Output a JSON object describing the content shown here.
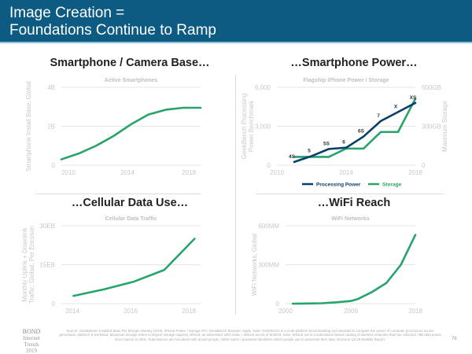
{
  "header": {
    "line1": "Image Creation =",
    "line2": "Foundations Continue to Ramp"
  },
  "colors": {
    "header": "#0d5a82",
    "green": "#26a469",
    "navy": "#0b3f6b"
  },
  "panels": {
    "p1": {
      "title": "Smartphone / Camera Base…"
    },
    "p2": {
      "title": "…Smartphone Power…"
    },
    "p3": {
      "title": "…Cellular Data Use…"
    },
    "p4": {
      "title": "…WiFi Reach"
    }
  },
  "chart_data": [
    {
      "type": "line",
      "title": "Active Smartphones",
      "ylabel": "Smartphone Install Base, Global",
      "xlim": [
        2010,
        2018
      ],
      "ylim": [
        0,
        4
      ],
      "yticks": [
        "0",
        "2B",
        "4B"
      ],
      "xticks": [
        "2010",
        "2014",
        "2018"
      ],
      "grid": true,
      "x": [
        2010,
        2011,
        2012,
        2013,
        2014,
        2015,
        2016,
        2017,
        2018
      ],
      "series": [
        {
          "values": [
            0.3,
            0.6,
            1.0,
            1.5,
            2.1,
            2.6,
            2.85,
            2.95,
            2.95
          ]
        }
      ]
    },
    {
      "type": "line",
      "title": "Flagship iPhone Power / Storage",
      "ylabel": "GeekBench Processing Power Benchmark",
      "y2label": "Maximum Storage",
      "xlim": [
        2010,
        2018
      ],
      "ylim": [
        0,
        6000
      ],
      "y2lim": [
        0,
        600
      ],
      "yticks": [
        "0",
        "3,000",
        "6,000"
      ],
      "y2ticks": [
        "0",
        "300GB",
        "600GB"
      ],
      "xticks": [
        "2010",
        "2014",
        "2018"
      ],
      "grid": true,
      "legend": "bottom",
      "x": [
        2011,
        2012,
        2013,
        2014,
        2015,
        2016,
        2017,
        2018
      ],
      "point_labels": [
        "4S",
        "5",
        "5S",
        "6",
        "6S",
        "7",
        "X",
        "XS"
      ],
      "series": [
        {
          "name": "Processing Power",
          "axis": "left",
          "values": [
            250,
            700,
            1250,
            1350,
            2200,
            3400,
            4100,
            4800
          ]
        },
        {
          "name": "Storage",
          "axis": "right",
          "values": [
            64,
            64,
            64,
            128,
            128,
            256,
            256,
            512
          ]
        }
      ]
    },
    {
      "type": "line",
      "title": "Cellular Data Traffic",
      "ylabel": "Monthly Uplink + Downlink Traffic, Global, Per Ericsson",
      "xlim": [
        2013.6,
        2018.2
      ],
      "ylim": [
        0,
        30
      ],
      "yticks": [
        "0",
        "15EB",
        "30EB"
      ],
      "xticks": [
        "2014",
        "2016",
        "2018"
      ],
      "grid": true,
      "x": [
        2014,
        2015,
        2016,
        2017,
        2018
      ],
      "series": [
        {
          "values": [
            3,
            5.5,
            8.5,
            13,
            25
          ]
        }
      ]
    },
    {
      "type": "line",
      "title": "WiFi Networks",
      "ylabel": "WiFi Networks, Global",
      "xlim": [
        2000,
        2018
      ],
      "ylim": [
        0,
        600
      ],
      "yticks": [
        "0",
        "300MM",
        "600MM"
      ],
      "xticks": [
        "2000",
        "2009",
        "2018"
      ],
      "grid": true,
      "x": [
        2001,
        2003,
        2005,
        2007,
        2009,
        2010,
        2012,
        2014,
        2016,
        2018
      ],
      "series": [
        {
          "values": [
            0,
            1,
            3,
            10,
            20,
            35,
            90,
            160,
            300,
            530
          ]
        }
      ]
    }
  ],
  "footer": {
    "logo1": "BOND",
    "logo2": "Internet Trends",
    "logo3": "2019",
    "page": "76",
    "source": "Source: Smartphone Installed Base Per Morgan Stanley (3/19). iPhone Power / Storage Per: GeekBench Browser, Apple. Note: Geekbench is a multi-platform benchmarking tool intended to compare the power of computer processors across generation, platform & workload. Maximum storage refers to largest storage capacity offered, as advertised. WiFi Data = WiGLE.net as of 5/28/19. Note: WiGLE.net is a submission-based catalog of wireless networks that has collected >8B data points since launch in 2001. Submissions are not paired with actual people, rather name / password identifiers which people use to associate their data. Ericsson Q4:18 Mobility Report."
  }
}
